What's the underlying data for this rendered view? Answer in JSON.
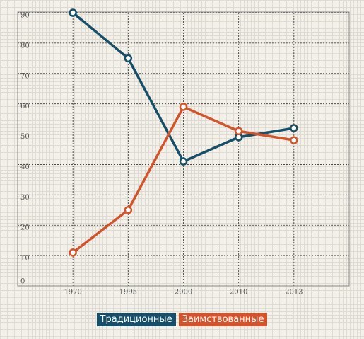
{
  "chart_data": {
    "type": "line",
    "categories": [
      "1970",
      "1995",
      "2000",
      "2010",
      "2013"
    ],
    "series": [
      {
        "name": "Традиционные",
        "color": "#164f69",
        "values": [
          90,
          75,
          41,
          49,
          52
        ]
      },
      {
        "name": "Заимствованные",
        "color": "#d4532b",
        "values": [
          11,
          25,
          59,
          51,
          48
        ]
      }
    ],
    "ylim": [
      0,
      90
    ],
    "yticks": [
      0,
      10,
      20,
      30,
      40,
      50,
      60,
      70,
      80,
      90
    ],
    "grid": true
  }
}
